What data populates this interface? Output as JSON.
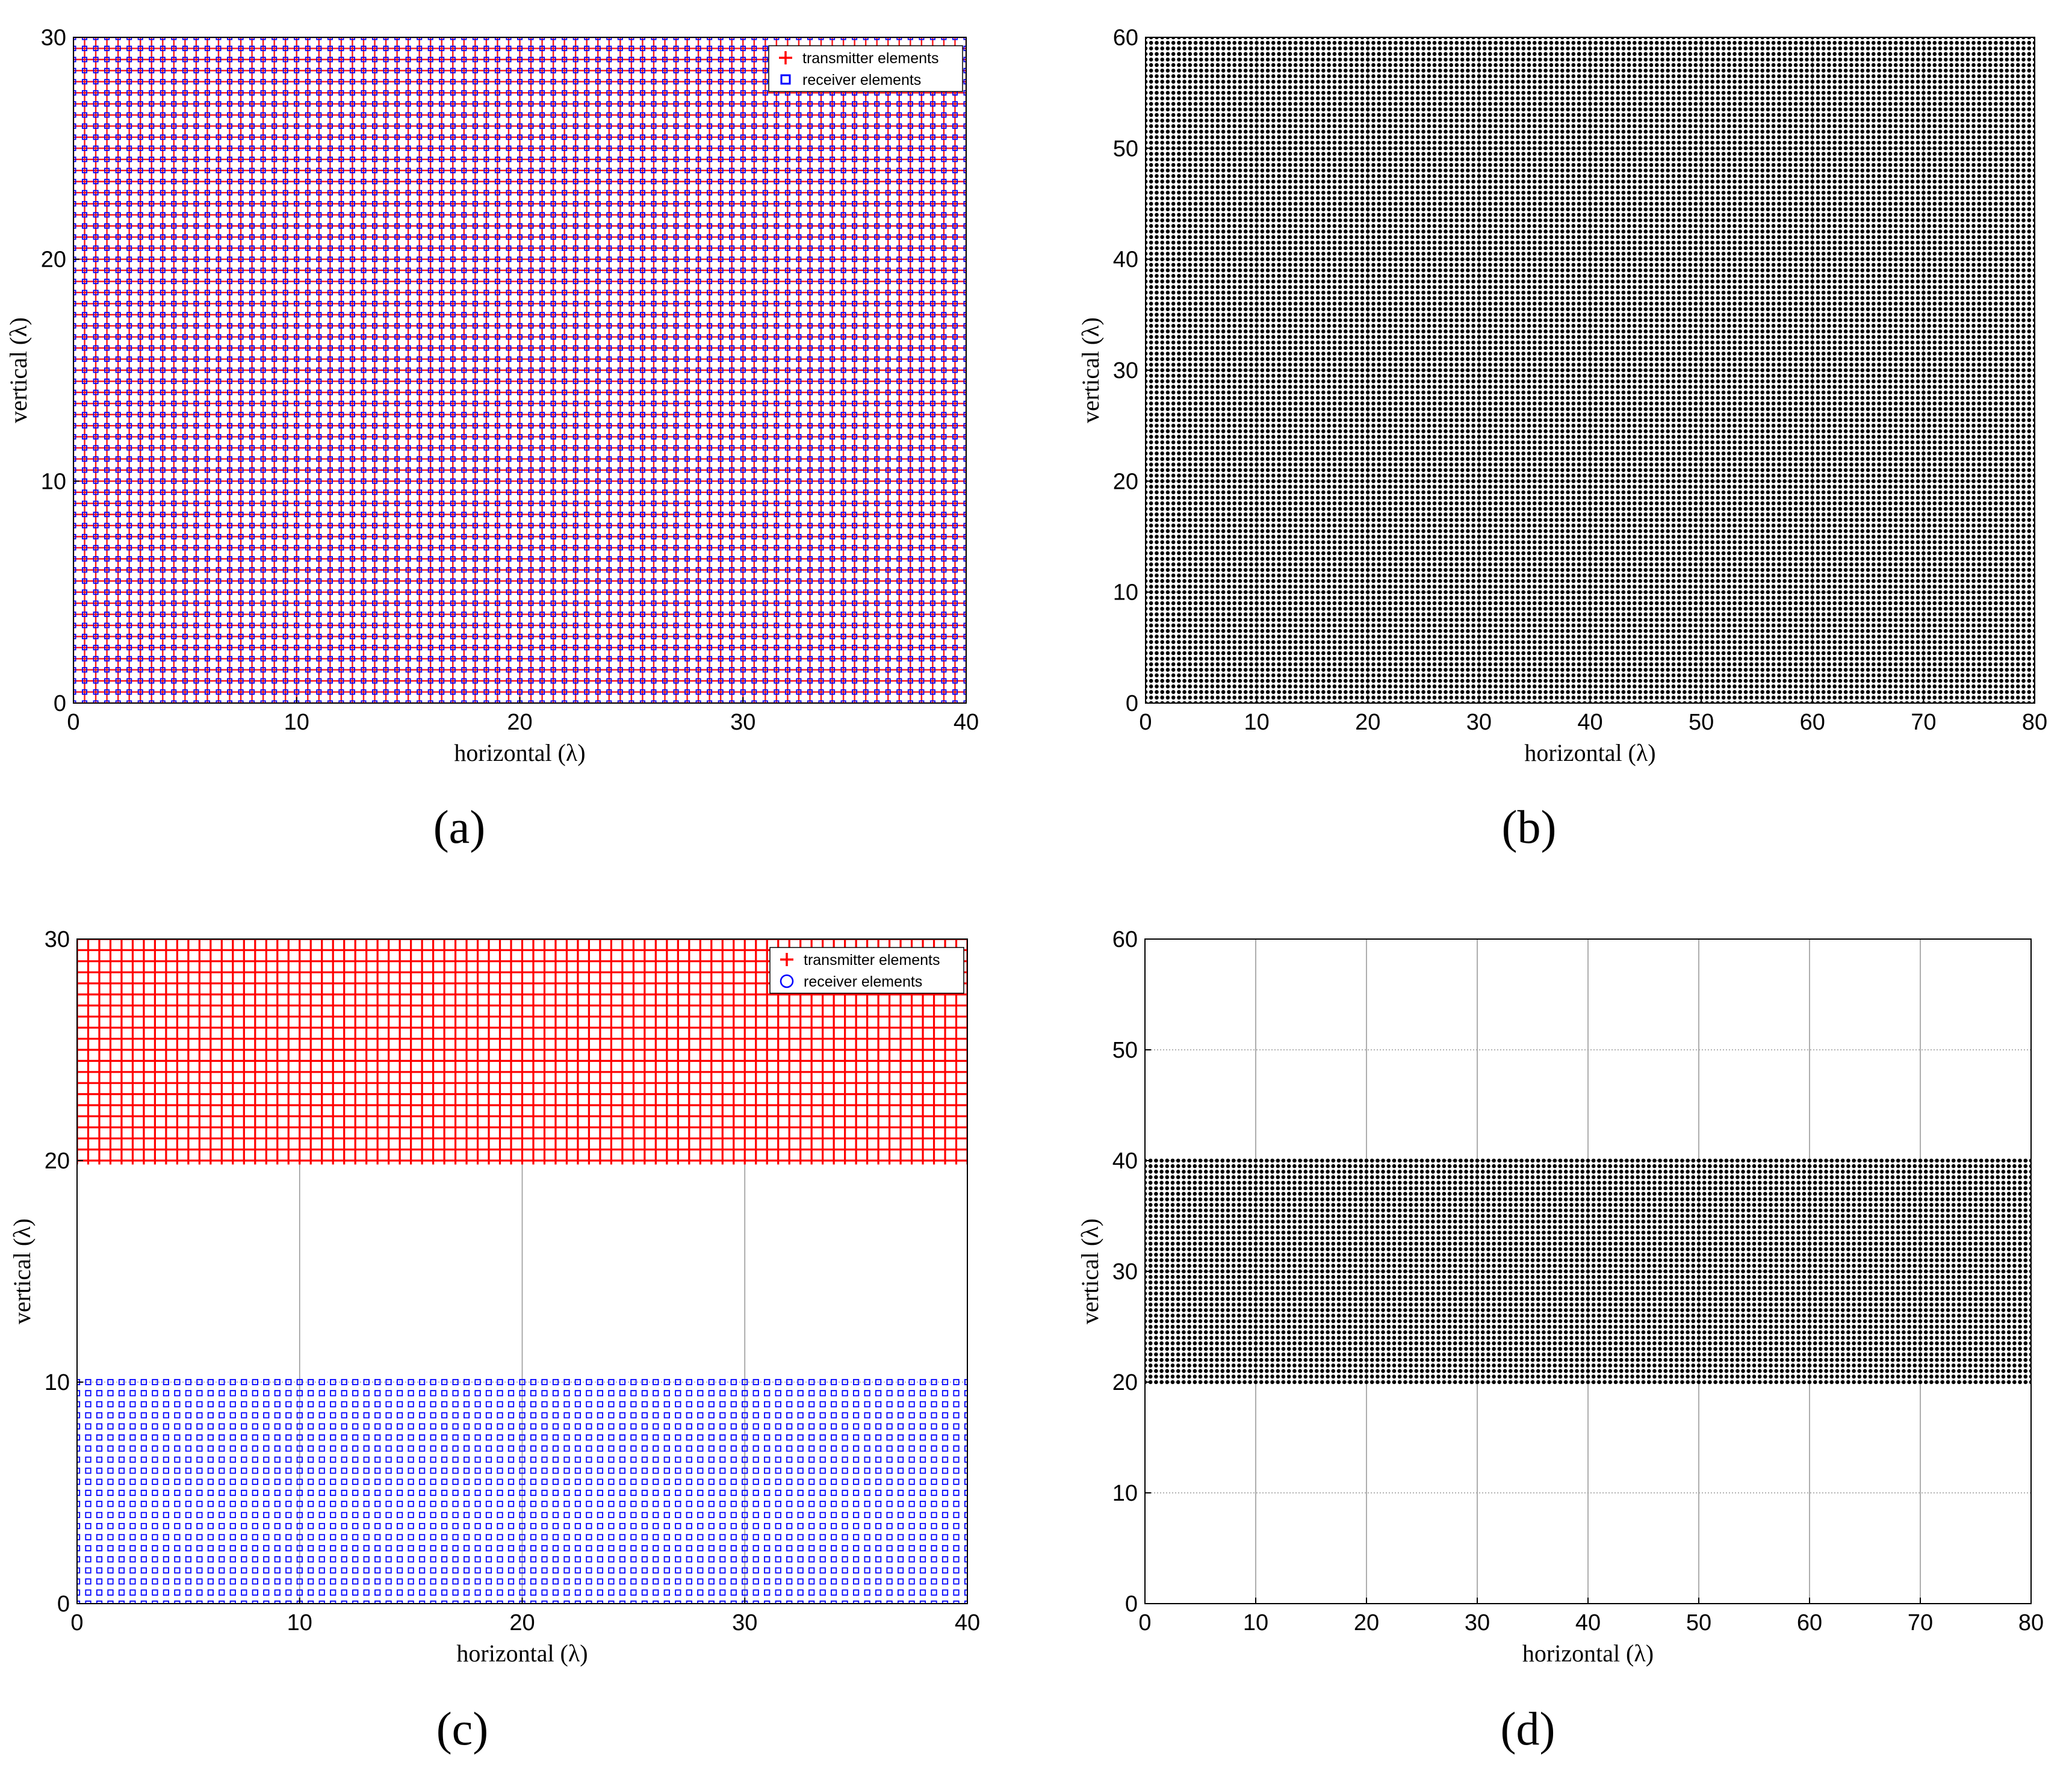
{
  "figure": {
    "panels": [
      {
        "caption": "(a)"
      },
      {
        "caption": "(b)"
      },
      {
        "caption": "(c)"
      },
      {
        "caption": "(d)"
      }
    ]
  },
  "chart_data": [
    {
      "type": "scatter",
      "panel": "(a)",
      "xlabel": "horizontal (λ)",
      "ylabel": "vertical (λ)",
      "xlim": [
        0,
        40
      ],
      "ylim": [
        0,
        30
      ],
      "xticks": [
        0,
        10,
        20,
        30,
        40
      ],
      "yticks": [
        0,
        10,
        20,
        30
      ],
      "grid": false,
      "legend_position": "top-right",
      "series": [
        {
          "name": "transmitter elements",
          "marker": "plus",
          "color": "#ff0000",
          "grid_points": {
            "x_start": 0,
            "x_end": 40,
            "x_step": 0.5,
            "y_start": 0,
            "y_end": 30,
            "y_step": 0.5
          }
        },
        {
          "name": "receiver elements",
          "marker": "square",
          "color": "#0000ff",
          "grid_points": {
            "x_start": 0,
            "x_end": 40,
            "x_step": 0.5,
            "y_start": 0,
            "y_end": 30,
            "y_step": 0.5
          }
        }
      ]
    },
    {
      "type": "scatter",
      "panel": "(b)",
      "xlabel": "horizontal (λ)",
      "ylabel": "vertical (λ)",
      "xlim": [
        0,
        80
      ],
      "ylim": [
        0,
        60
      ],
      "xticks": [
        0,
        10,
        20,
        30,
        40,
        50,
        60,
        70,
        80
      ],
      "yticks": [
        0,
        10,
        20,
        30,
        40,
        50,
        60
      ],
      "grid": true,
      "legend_position": "none",
      "series": [
        {
          "marker": "dot",
          "color": "#000000",
          "grid_points": {
            "x_start": 0,
            "x_end": 80,
            "x_step": 0.5,
            "y_start": 0,
            "y_end": 60,
            "y_step": 0.5
          }
        }
      ]
    },
    {
      "type": "scatter",
      "panel": "(c)",
      "xlabel": "horizontal (λ)",
      "ylabel": "vertical (λ)",
      "xlim": [
        0,
        40
      ],
      "ylim": [
        0,
        30
      ],
      "xticks": [
        0,
        10,
        20,
        30,
        40
      ],
      "yticks": [
        0,
        10,
        20,
        30
      ],
      "grid": true,
      "legend_position": "top-right",
      "series": [
        {
          "name": "transmitter elements",
          "marker": "plus",
          "color": "#ff0000",
          "grid_points": {
            "x_start": 0,
            "x_end": 40,
            "x_step": 0.5,
            "y_start": 20,
            "y_end": 30,
            "y_step": 0.5
          }
        },
        {
          "name": "receiver elements",
          "marker": "square",
          "legend_marker": "circle",
          "color": "#0000ff",
          "grid_points": {
            "x_start": 0,
            "x_end": 40,
            "x_step": 0.5,
            "y_start": 0,
            "y_end": 10,
            "y_step": 0.5
          }
        }
      ]
    },
    {
      "type": "scatter",
      "panel": "(d)",
      "xlabel": "horizontal (λ)",
      "ylabel": "vertical (λ)",
      "xlim": [
        0,
        80
      ],
      "ylim": [
        0,
        60
      ],
      "xticks": [
        0,
        10,
        20,
        30,
        40,
        50,
        60,
        70,
        80
      ],
      "yticks": [
        0,
        10,
        20,
        30,
        40,
        50,
        60
      ],
      "grid": true,
      "legend_position": "none",
      "series": [
        {
          "marker": "dot",
          "color": "#000000",
          "grid_points": {
            "x_start": 0,
            "x_end": 80,
            "x_step": 0.5,
            "y_start": 20,
            "y_end": 40,
            "y_step": 0.5
          }
        }
      ]
    }
  ]
}
